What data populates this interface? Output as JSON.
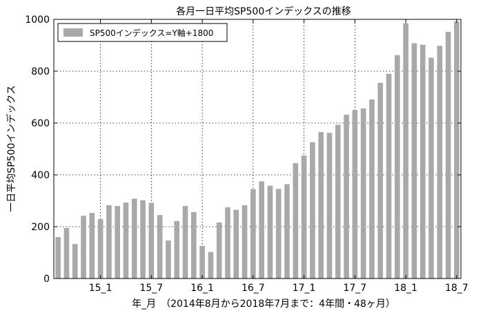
{
  "chart_data": {
    "type": "bar",
    "title": "各月一日平均SP500インデックスの推移",
    "xlabel": "年_月　（2014年8月から2018年7月まで：4年間・48ヶ月）",
    "ylabel": "一日平均SP500インデックス",
    "ylim": [
      0,
      1000
    ],
    "yticks": [
      0,
      200,
      400,
      600,
      800,
      1000
    ],
    "xtick_labels": [
      "15_1",
      "15_7",
      "16_1",
      "16_7",
      "17_1",
      "17_7",
      "18_1",
      "18_7"
    ],
    "xtick_indices": [
      5,
      11,
      17,
      23,
      29,
      35,
      41,
      47
    ],
    "grid": true,
    "legend_position": "top-left",
    "series": [
      {
        "name": "SP500インデックス=Y軸+1800",
        "color": "#a9a9a9",
        "values": [
          160,
          195,
          133,
          242,
          253,
          229,
          283,
          280,
          293,
          308,
          302,
          292,
          245,
          147,
          222,
          280,
          256,
          126,
          102,
          216,
          275,
          265,
          283,
          345,
          375,
          358,
          346,
          364,
          445,
          475,
          526,
          565,
          562,
          593,
          632,
          650,
          656,
          691,
          755,
          790,
          862,
          985,
          908,
          902,
          852,
          898,
          952,
          992
        ]
      }
    ]
  }
}
